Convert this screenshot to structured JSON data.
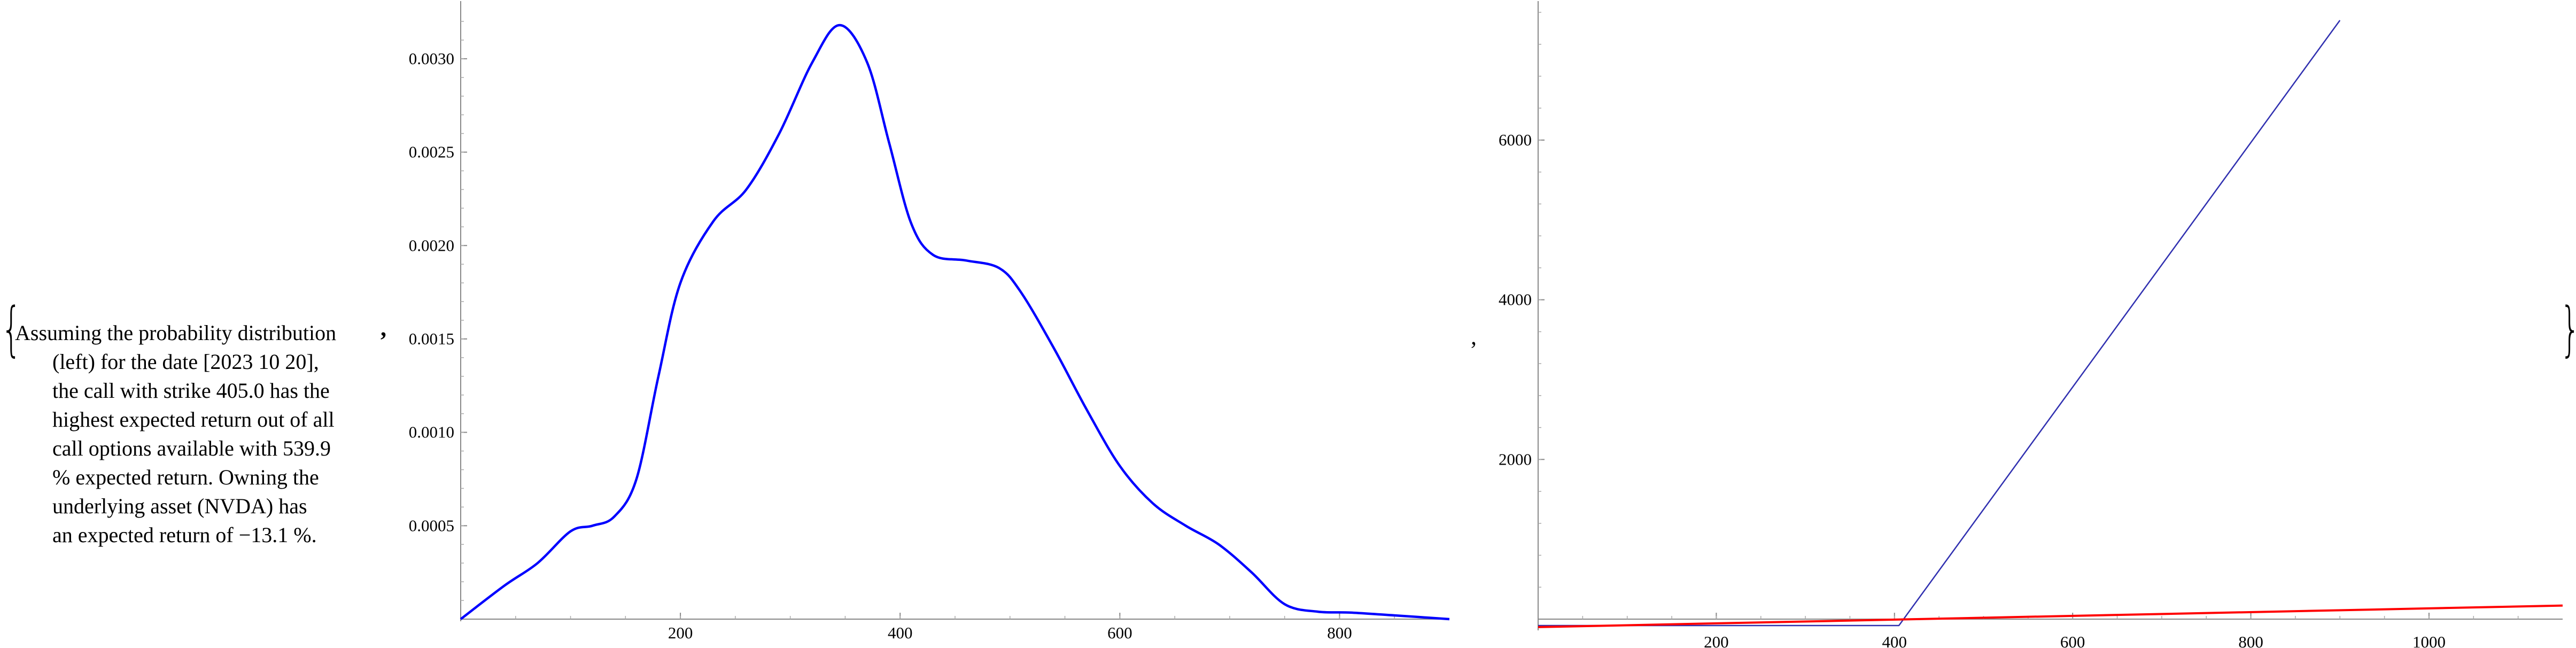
{
  "text": {
    "lines": [
      "Assuming the probability distribution",
      "(left) for the date [2023 10 20],",
      "the call with strike 405.0 has the",
      "highest expected return out of all",
      "call options available with 539.9",
      "% expected return. Owning the",
      "underlying asset (NVDA) has",
      "an expected return of −13.1 %."
    ],
    "brace_open": "{",
    "brace_close": "}",
    "separator_comma_1": ",",
    "separator_comma_2": ","
  },
  "chart_data": [
    {
      "type": "line",
      "title": "",
      "xlabel": "",
      "ylabel": "",
      "xlim": [
        0,
        900
      ],
      "ylim": [
        0,
        0.0032
      ],
      "x_ticks": [
        200,
        400,
        600,
        800
      ],
      "y_ticks": [
        0.0005,
        0.001,
        0.0015,
        0.002,
        0.0025,
        0.003
      ],
      "y_tick_labels": [
        "0.0005",
        "0.0010",
        "0.0015",
        "0.0020",
        "0.0025",
        "0.0030"
      ],
      "grid": false,
      "series": [
        {
          "color": "#0000ff",
          "x": [
            0,
            40,
            70,
            100,
            120,
            140,
            160,
            180,
            200,
            230,
            260,
            290,
            320,
            345,
            370,
            390,
            410,
            430,
            460,
            490,
            510,
            540,
            570,
            600,
            630,
            660,
            690,
            720,
            750,
            780,
            810,
            850,
            900
          ],
          "y": [
            0,
            0.00018,
            0.0003,
            0.00047,
            0.0005,
            0.00055,
            0.00075,
            0.0013,
            0.0018,
            0.00213,
            0.0023,
            0.0026,
            0.00298,
            0.00318,
            0.00298,
            0.00255,
            0.00212,
            0.00195,
            0.00192,
            0.00188,
            0.00175,
            0.00145,
            0.00112,
            0.00082,
            0.00062,
            0.0005,
            0.0004,
            0.00025,
            8e-05,
            4e-05,
            3.5e-05,
            2e-05,
            0
          ]
        }
      ]
    },
    {
      "type": "line",
      "title": "",
      "xlabel": "",
      "ylabel": "",
      "xlim": [
        0,
        1150
      ],
      "ylim": [
        -100,
        7700
      ],
      "x_ticks": [
        200,
        400,
        600,
        800,
        1000
      ],
      "y_ticks": [
        2000,
        4000,
        6000
      ],
      "grid": false,
      "series": [
        {
          "color": "#3030b0",
          "x": [
            0,
            405,
            900
          ],
          "y": [
            -80,
            -80,
            7500
          ]
        },
        {
          "color": "#ff0000",
          "x": [
            0,
            1150
          ],
          "y": [
            -100,
            170
          ]
        }
      ]
    }
  ]
}
